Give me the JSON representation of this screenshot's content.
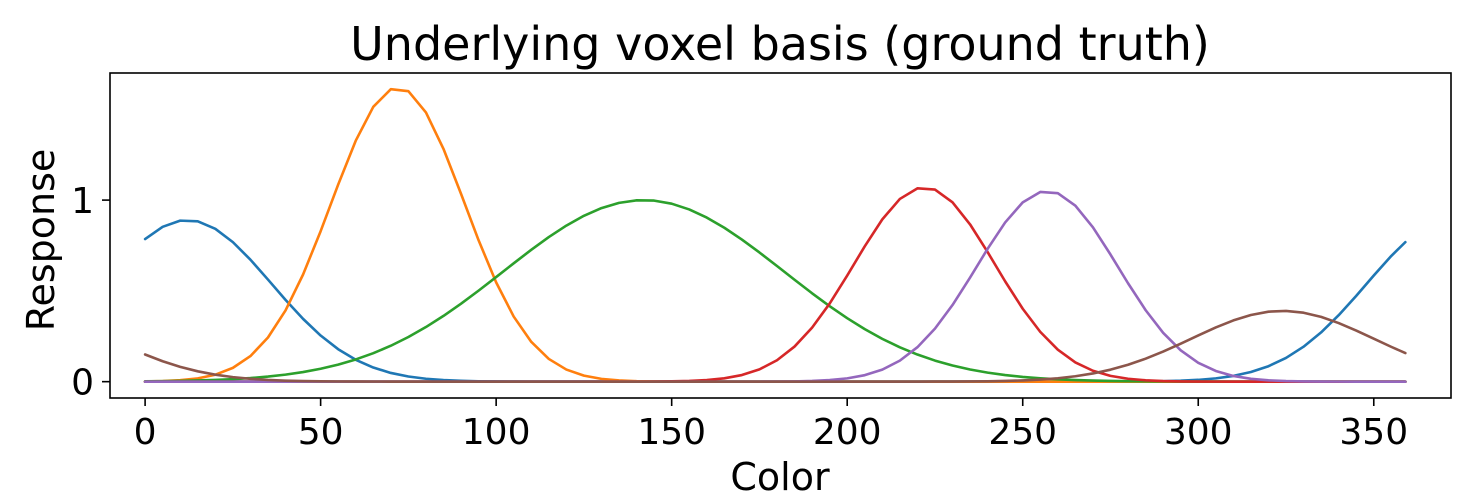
{
  "chart_data": {
    "type": "line",
    "title": "Underlying voxel basis (ground truth)",
    "xlabel": "Color",
    "ylabel": "Response",
    "xlim": [
      -10,
      372
    ],
    "ylim": [
      -0.09,
      1.7
    ],
    "xticks": [
      0,
      50,
      100,
      150,
      200,
      250,
      300,
      350
    ],
    "yticks": [
      0,
      1
    ],
    "grid": false,
    "legend": "none",
    "x_step": 5,
    "series": [
      {
        "color": "#1f77b4",
        "shape": "circular-gaussian",
        "peak_x": 12,
        "peak_y": 0.89,
        "sigma": 24,
        "x_range": [
          0,
          359
        ]
      },
      {
        "color": "#ff7f0e",
        "shape": "gaussian",
        "peak_x": 72,
        "peak_y": 1.62,
        "sigma": 19,
        "x_range": [
          0,
          359
        ]
      },
      {
        "color": "#2ca02c",
        "shape": "gaussian",
        "peak_x": 142,
        "peak_y": 1.0,
        "sigma": 40,
        "x_range": [
          0,
          359
        ]
      },
      {
        "color": "#d62728",
        "shape": "gaussian",
        "peak_x": 222,
        "peak_y": 1.07,
        "sigma": 20,
        "x_range": [
          0,
          359
        ]
      },
      {
        "color": "#9467bd",
        "shape": "gaussian",
        "peak_x": 257,
        "peak_y": 1.05,
        "sigma": 20,
        "x_range": [
          0,
          359
        ]
      },
      {
        "color": "#8c564b",
        "shape": "circular-gaussian",
        "peak_x": 324,
        "peak_y": 0.39,
        "sigma": 26,
        "x_range": [
          0,
          359
        ]
      },
      {
        "color": "#e377c2",
        "shape": "flat",
        "value": 0,
        "x_range": [
          0,
          359
        ]
      },
      {
        "color": "#7f7f7f",
        "shape": "flat",
        "value": 0,
        "x_range": [
          0,
          359
        ]
      },
      {
        "color": "#bcbd22",
        "shape": "flat",
        "value": 0,
        "x_range": [
          0,
          359
        ]
      },
      {
        "color": "#17becf",
        "shape": "flat",
        "value": 0,
        "x_range": [
          0,
          359
        ]
      },
      {
        "color": "#9467bd",
        "shape": "flat",
        "value": 0,
        "x_range": [
          0,
          359
        ]
      }
    ]
  }
}
